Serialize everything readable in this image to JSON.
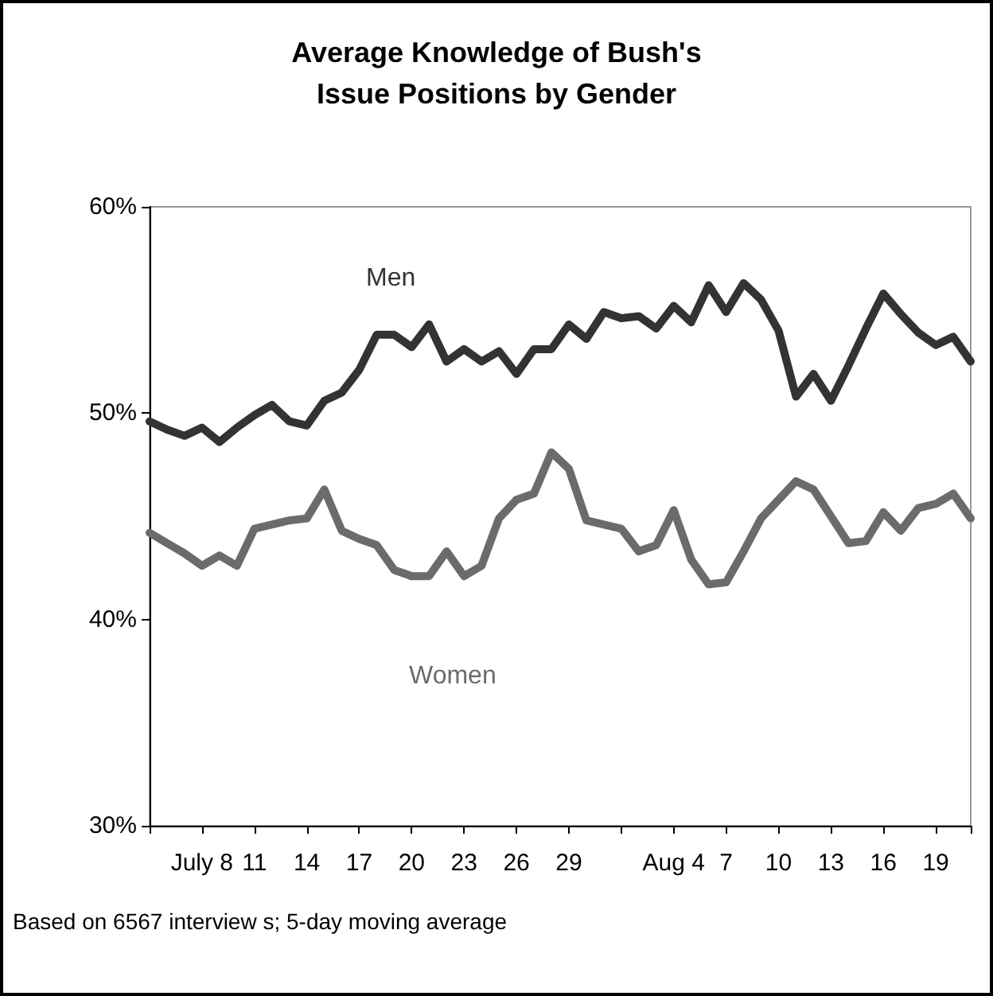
{
  "chart_data": {
    "type": "line",
    "title": "Average Knowledge of Bush's\nIssue Positions by Gender",
    "annotations": [
      "Based on 6567 interview s; 5-day moving average"
    ],
    "categories": [
      null,
      null,
      null,
      "July 8",
      null,
      null,
      "11",
      null,
      null,
      "14",
      null,
      null,
      "17",
      null,
      null,
      "20",
      null,
      null,
      "23",
      null,
      null,
      "26",
      null,
      null,
      "29",
      null,
      null,
      null,
      null,
      null,
      "Aug 4",
      null,
      null,
      "7",
      null,
      null,
      "10",
      null,
      null,
      "13",
      null,
      null,
      "16",
      null,
      null,
      "19",
      null,
      null
    ],
    "ylim": [
      30,
      60
    ],
    "yticks": [
      {
        "value": 30,
        "label": "30%"
      },
      {
        "value": 40,
        "label": "40%"
      },
      {
        "value": 50,
        "label": "50%"
      },
      {
        "value": 60,
        "label": "60%"
      }
    ],
    "grid": false,
    "legend": false,
    "marker": "none",
    "line_style": "solid",
    "series": [
      {
        "name": "Men",
        "color": "#333333",
        "values": [
          49.6,
          49.2,
          48.9,
          49.3,
          48.6,
          49.3,
          49.9,
          50.4,
          49.6,
          49.4,
          50.6,
          51.0,
          52.1,
          53.8,
          53.8,
          53.2,
          54.3,
          52.5,
          53.1,
          52.5,
          53.0,
          51.9,
          53.1,
          53.1,
          54.3,
          53.6,
          54.9,
          54.6,
          54.7,
          54.1,
          55.2,
          54.4,
          56.2,
          54.9,
          56.3,
          55.5,
          54.0,
          50.8,
          51.9,
          50.6,
          52.3,
          54.1,
          55.8,
          54.8,
          53.9,
          53.3,
          53.7,
          52.5
        ]
      },
      {
        "name": "Women",
        "color": "#6b6b6b",
        "values": [
          44.2,
          43.7,
          43.2,
          42.6,
          43.1,
          42.6,
          44.4,
          44.6,
          44.8,
          44.9,
          46.3,
          44.3,
          43.9,
          43.6,
          42.4,
          42.1,
          42.1,
          43.3,
          42.1,
          42.6,
          44.9,
          45.8,
          46.1,
          48.1,
          47.3,
          44.8,
          44.6,
          44.4,
          43.3,
          43.6,
          45.3,
          42.9,
          41.7,
          41.8,
          43.3,
          44.9,
          45.8,
          46.7,
          46.3,
          45.0,
          43.7,
          43.8,
          45.2,
          44.3,
          45.4,
          45.6,
          46.1,
          44.9
        ]
      }
    ]
  }
}
